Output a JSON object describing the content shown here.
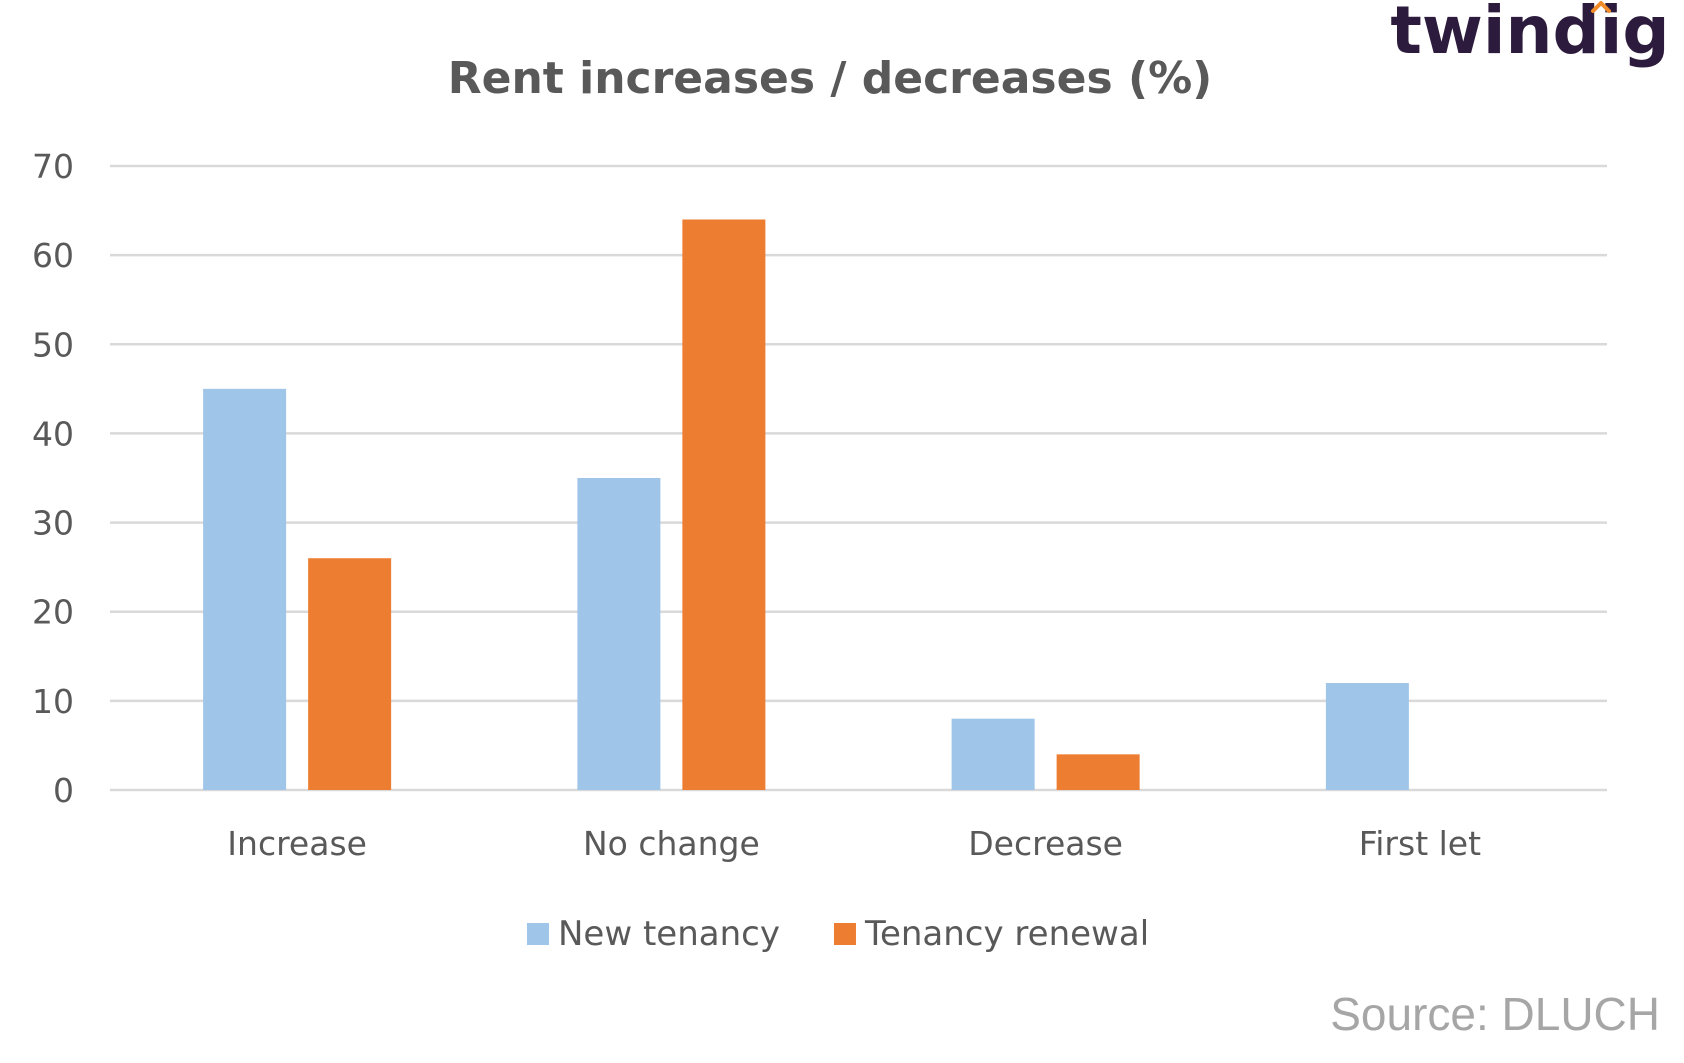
{
  "brand": {
    "logo_text": "twindig",
    "accent_color": "#f28c28",
    "text_color": "#2d1b3d"
  },
  "source": "Source: DLUCH",
  "chart_data": {
    "type": "bar",
    "title": "Rent increases / decreases (%)",
    "xlabel": "",
    "ylabel": "",
    "categories": [
      "Increase",
      "No change",
      "Decrease",
      "First let"
    ],
    "series": [
      {
        "name": "New tenancy",
        "color": "#9fc5e8",
        "values": [
          45,
          35,
          8,
          12
        ]
      },
      {
        "name": "Tenancy renewal",
        "color": "#ed7d31",
        "values": [
          26,
          64,
          4,
          0
        ]
      }
    ],
    "ylim": [
      0,
      70
    ],
    "yticks": [
      0,
      10,
      20,
      30,
      40,
      50,
      60,
      70
    ],
    "grid": true,
    "legend_position": "bottom"
  }
}
